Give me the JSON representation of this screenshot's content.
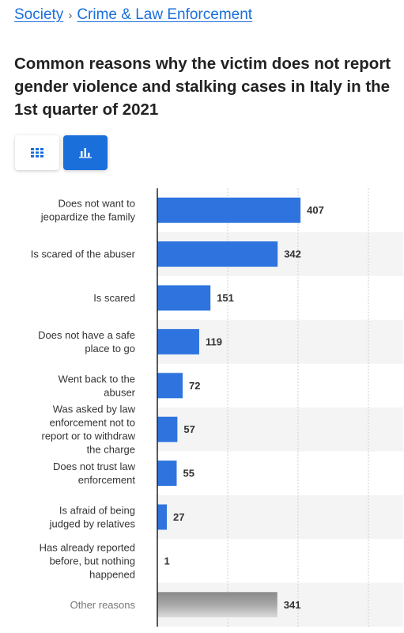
{
  "breadcrumb": {
    "items": [
      "Society",
      "Crime & Law Enforcement"
    ],
    "separator": "›"
  },
  "title": "Common reasons why the victim does not report gender violence and stalking cases in Italy in the 1st quarter of 2021",
  "toggle": {
    "table_icon": "grid-icon",
    "chart_icon": "bar-chart-icon",
    "active": "chart"
  },
  "colors": {
    "accent": "#1a6fdb",
    "bar": "#2f74de",
    "other_bar": "#9a9a9a",
    "band": "#f4f4f4"
  },
  "chart_data": {
    "type": "bar",
    "orientation": "horizontal",
    "categories": [
      "Does not want to jeopardize the family",
      "Is scared of the abuser",
      "Is scared",
      "Does not have a safe place to go",
      "Went back to the abuser",
      "Was asked by law enforcement not to report or to withdraw the charge",
      "Does not trust law enforcement",
      "Is afraid of being judged by relatives",
      "Has already reported before, but nothing happened",
      "Other reasons"
    ],
    "label_lines": [
      [
        "Does not want to",
        "jeopardize the family"
      ],
      [
        "Is scared of the abuser"
      ],
      [
        "Is scared"
      ],
      [
        "Does not have a safe",
        "place to go"
      ],
      [
        "Went back to the",
        "abuser"
      ],
      [
        "Was asked by law",
        "enforcement not to",
        "report or to withdraw",
        "the charge"
      ],
      [
        "Does not trust law",
        "enforcement"
      ],
      [
        "Is afraid of being",
        "judged by relatives"
      ],
      [
        "Has already reported",
        "before, but nothing",
        "happened"
      ],
      [
        "Other reasons"
      ]
    ],
    "values": [
      407,
      342,
      151,
      119,
      72,
      57,
      55,
      27,
      1,
      341
    ],
    "highlight_last_as_other": true,
    "xlim": [
      0,
      600
    ],
    "grid": true
  }
}
